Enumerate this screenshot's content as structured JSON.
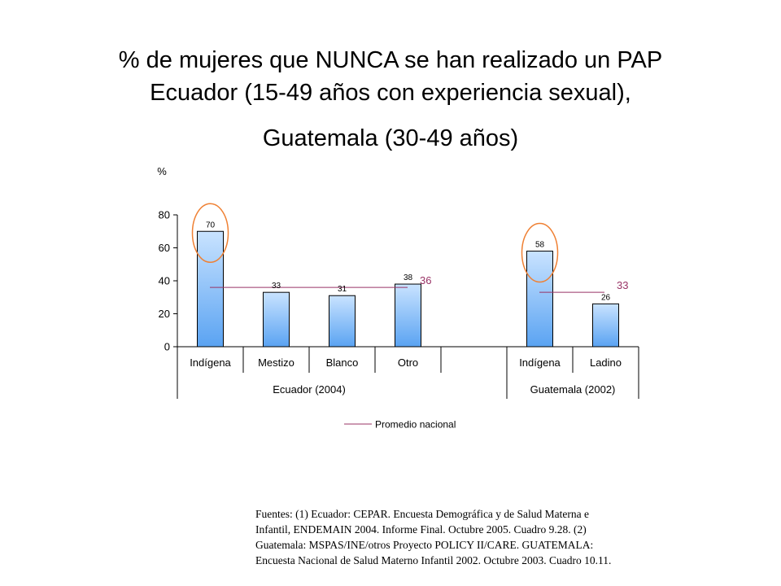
{
  "title": {
    "line1": "% de mujeres que NUNCA se han realizado un PAP",
    "line2": "Ecuador (15-49 años con experiencia sexual),",
    "line3": "Guatemala (30-49 años)"
  },
  "chart_data": {
    "type": "bar",
    "ylabel": "%",
    "ylim": [
      0,
      80
    ],
    "yticks": [
      0,
      20,
      40,
      60,
      80
    ],
    "categories": [
      "Indígena",
      "Mestizo",
      "Blanco",
      "Otro",
      "Indígena",
      "Ladino"
    ],
    "values": [
      70,
      33,
      31,
      38,
      58,
      26
    ],
    "value_labels": [
      "70",
      "33",
      "31",
      "38",
      "58",
      "26"
    ],
    "highlighted": [
      true,
      false,
      false,
      false,
      true,
      false
    ],
    "groups": [
      {
        "name": "Ecuador (2004)",
        "categories": [
          0,
          1,
          2,
          3
        ],
        "average": 36,
        "average_label": "36"
      },
      {
        "name": "Guatemala (2002)",
        "categories": [
          4,
          5
        ],
        "average": 33,
        "average_label": "33"
      }
    ],
    "legend": [
      "Promedio nacional"
    ],
    "colors": {
      "bar_top": "#c9e3ff",
      "bar_bottom": "#5aa3f2",
      "bar_stroke": "#000000",
      "average_line": "#993366",
      "highlight_circle": "#ef8033"
    }
  },
  "source": {
    "lines": [
      "Fuentes: (1) Ecuador: CEPAR. Encuesta Demográfica y de Salud Materna e",
      "Infantil, ENDEMAIN 2004. Informe Final. Octubre 2005. Cuadro 9.28. (2)",
      "Guatemala: MSPAS/INE/otros Proyecto POLICY II/CARE. GUATEMALA:",
      "Encuesta Nacional de Salud Materno Infantil 2002. Octubre 2003. Cuadro 10.11."
    ]
  }
}
